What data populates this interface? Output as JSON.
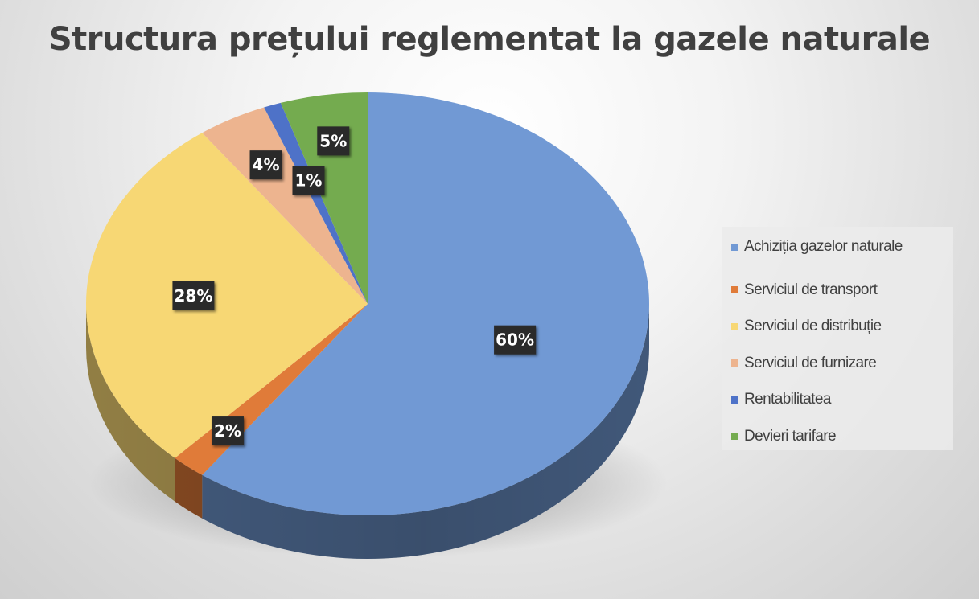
{
  "chart_data": {
    "type": "pie",
    "title": "Structura prețului reglementat la gazele naturale",
    "categories": [
      "Achiziția gazelor naturale",
      "Serviciul de transport",
      "Serviciul de distribuție",
      "Serviciul de furnizare",
      "Rentabilitatea",
      "Devieri tarifare"
    ],
    "values": [
      60,
      2,
      28,
      4,
      1,
      5
    ],
    "data_labels": [
      "60%",
      "2%",
      "28%",
      "4%",
      "1%",
      "5%"
    ],
    "colors": [
      "#7199d4",
      "#e07b39",
      "#f7d774",
      "#edb48f",
      "#4e72c8",
      "#74ab4f"
    ],
    "legend_position": "right",
    "style": "3d-pie"
  }
}
